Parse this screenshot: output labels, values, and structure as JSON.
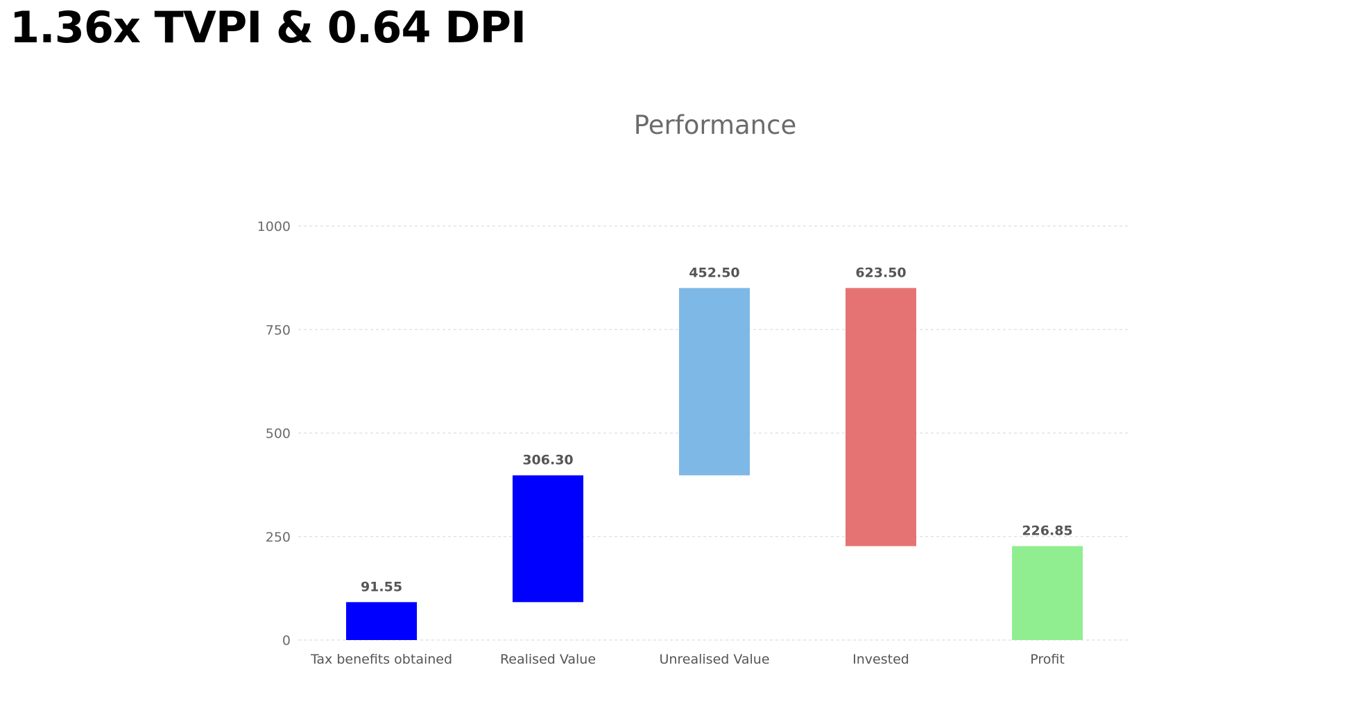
{
  "headline": "1.36x TVPI & 0.64 DPI",
  "chart_data": {
    "type": "waterfall",
    "title": "Performance",
    "xlabel": "",
    "ylabel": "",
    "ylim": [
      0,
      1000
    ],
    "yticks": [
      0,
      250,
      500,
      750,
      1000
    ],
    "grid": true,
    "legend": "none",
    "categories": [
      "Tax benefits obtained",
      "Realised Value",
      "Unrealised Value",
      "Invested",
      "Profit"
    ],
    "values": [
      91.55,
      306.3,
      452.5,
      -623.5,
      226.85
    ],
    "value_labels": [
      "91.55",
      "306.30",
      "452.50",
      "623.50",
      "226.85"
    ],
    "steps": [
      {
        "start": 0,
        "end": 91.55
      },
      {
        "start": 91.55,
        "end": 397.85
      },
      {
        "start": 397.85,
        "end": 850.35
      },
      {
        "start": 850.35,
        "end": 226.85
      },
      {
        "start": 0,
        "end": 226.85
      }
    ],
    "colors": [
      "#0000ff",
      "#0000ff",
      "#7eb8e6",
      "#e57373",
      "#90ee90"
    ]
  }
}
